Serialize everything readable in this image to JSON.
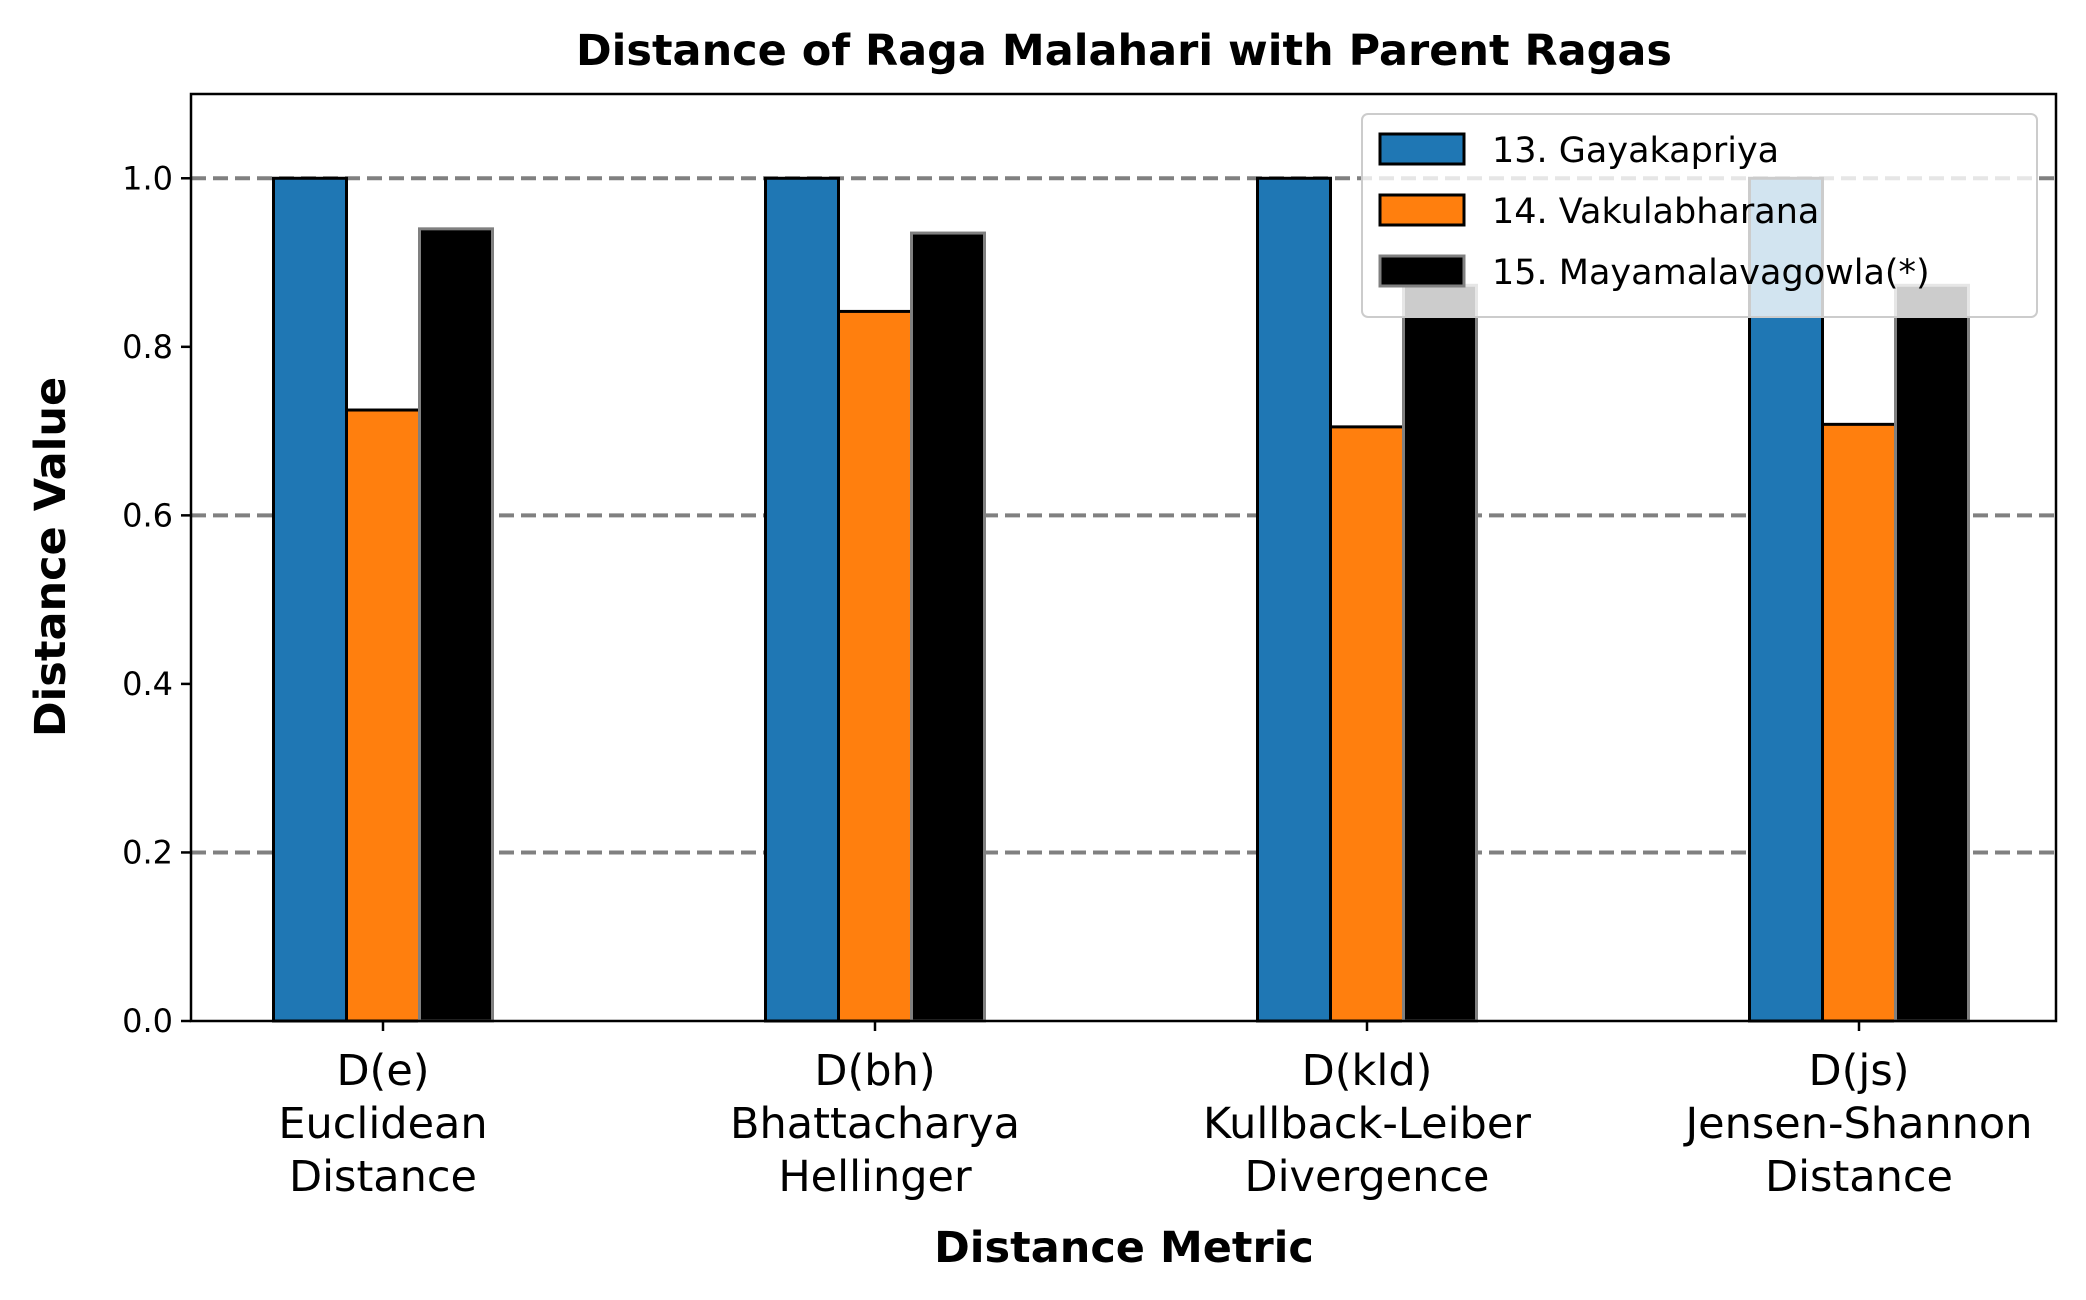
{
  "chart_data": {
    "type": "bar",
    "title": "Distance of Raga Malahari with Parent Ragas",
    "xlabel": "Distance Metric",
    "ylabel": "Distance Value",
    "ylim": [
      0,
      1.1
    ],
    "yticks": [
      "0.0",
      "0.2",
      "0.4",
      "0.6",
      "0.8",
      "1.0"
    ],
    "grid": "horizontal dashed at 0.2, 0.6, 1.0",
    "legend_position": "top-right",
    "categories": [
      [
        "D(e)",
        "Euclidean",
        "Distance"
      ],
      [
        "D(bh)",
        "Bhattacharya",
        "Hellinger"
      ],
      [
        "D(kld)",
        "Kullback-Leiber",
        "Divergence"
      ],
      [
        "D(js)",
        "Jensen-Shannon",
        "Distance"
      ]
    ],
    "series": [
      {
        "name": "13. Gayakapriya",
        "color": "#1f77b4",
        "edge": "#000000",
        "values": [
          1.0,
          1.0,
          1.0,
          1.0
        ]
      },
      {
        "name": "14. Vakulabharana",
        "color": "#ff7f0e",
        "edge": "#000000",
        "values": [
          0.725,
          0.842,
          0.705,
          0.708
        ]
      },
      {
        "name": "15. Mayamalavagowla(*)",
        "color": "#000000",
        "edge": "#808080",
        "values": [
          0.94,
          0.935,
          0.873,
          0.873
        ]
      }
    ]
  }
}
